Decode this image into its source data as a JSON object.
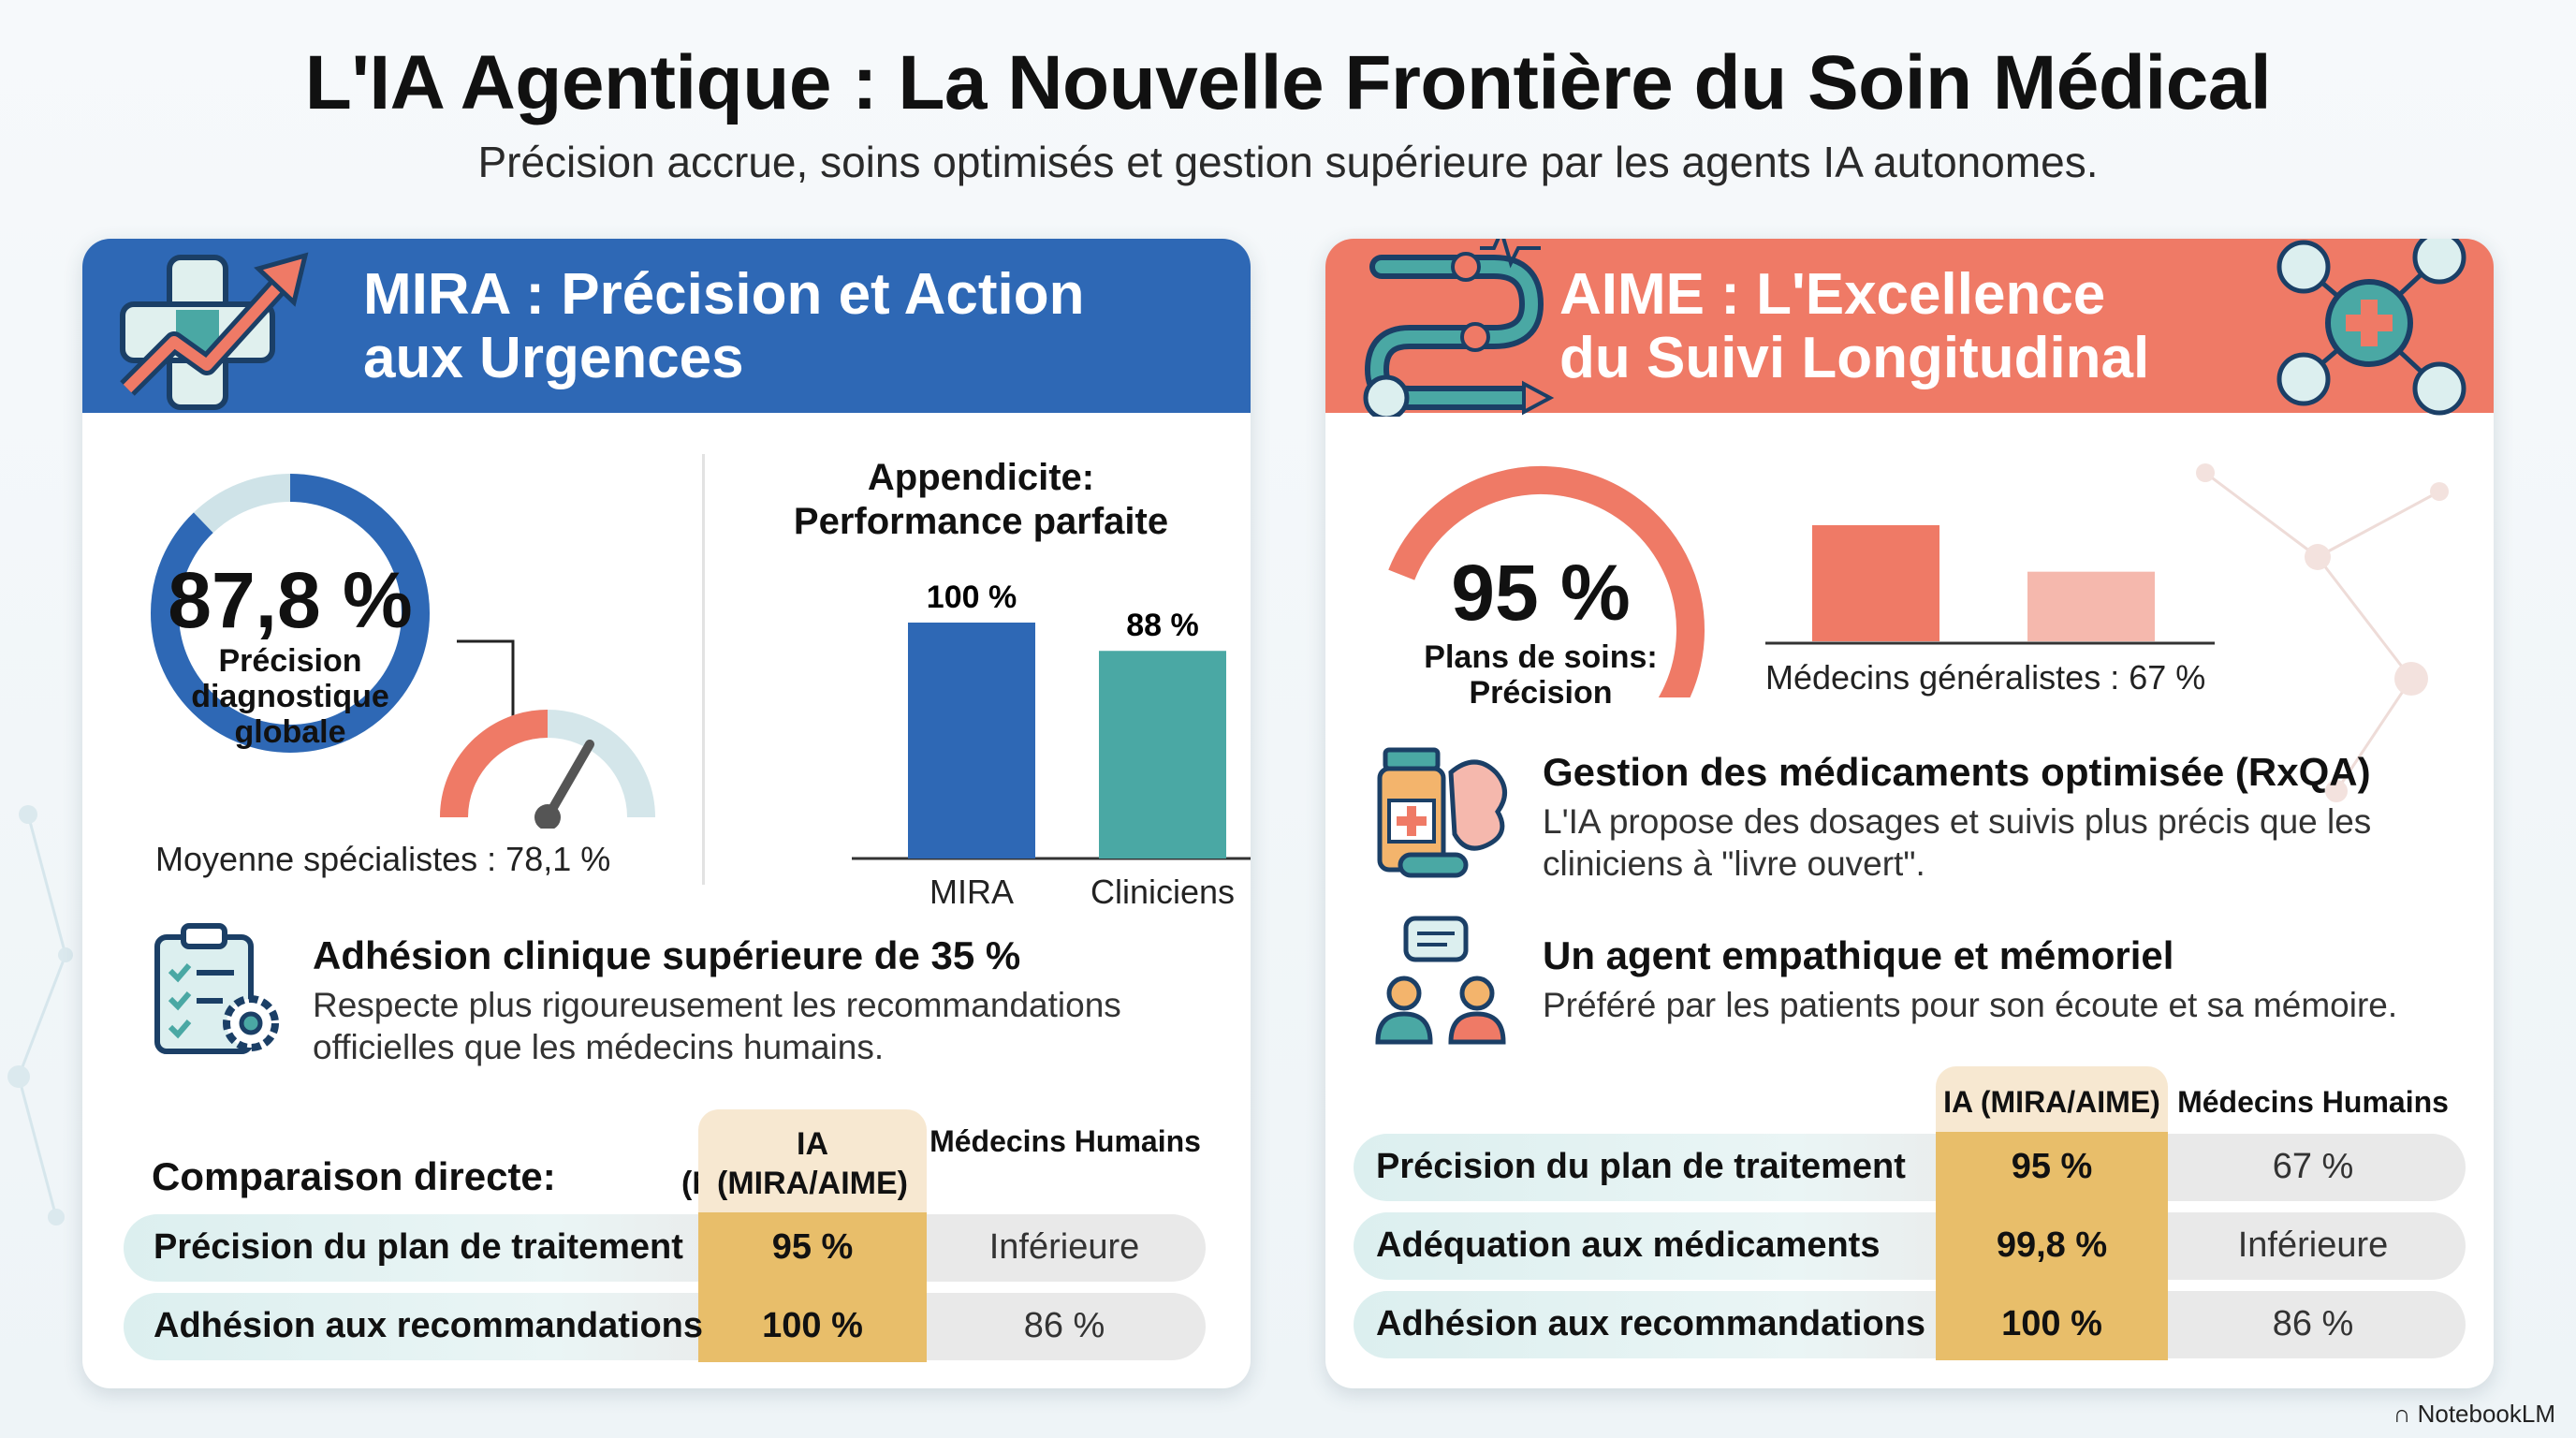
{
  "header": {
    "title": "L'IA Agentique : La Nouvelle Frontière du Soin Médical",
    "subtitle": "Précision accrue, soins optimisés et gestion supérieure par les agents IA autonomes."
  },
  "mira": {
    "title": "MIRA : Précision et Action\naux Urgences",
    "donut": {
      "value_label": "87,8 %",
      "value": 87.8,
      "caption": "Précision\ndiagnostique\nglobale"
    },
    "gauge_note": "Moyenne spécialistes : 78,1 %",
    "appendicite": {
      "title": "Appendicite:\nPerformance parfaite",
      "bars": [
        {
          "label": "MIRA",
          "value": 100,
          "value_label": "100 %",
          "color": "#2e68b5"
        },
        {
          "label": "Cliniciens",
          "value": 88,
          "value_label": "88 %",
          "color": "#4aa8a4"
        }
      ]
    },
    "feature": {
      "title": "Adhésion clinique supérieure de 35 %",
      "desc": "Respecte plus rigoureusement les recommandations\nofficielles que les médecins humains."
    },
    "table": {
      "heading": "Comparaison directe:",
      "col_ai": "IA\n(MIRA/AIME)",
      "col_doc": "Médecins Humains",
      "rows": [
        {
          "label": "Précision du plan de traitement",
          "ai": "95 %",
          "doc": "Inférieure"
        },
        {
          "label": "Adhésion aux recommandations",
          "ai": "100 %",
          "doc": "86 %"
        }
      ]
    }
  },
  "aime": {
    "title": "AIME : L'Excellence\ndu Suivi Longitudinal",
    "gauge": {
      "value_label": "95 %",
      "value": 95,
      "caption": "Plans de soins:\nPrécision"
    },
    "bars": [
      {
        "value": 95,
        "color": "#ef7a66"
      },
      {
        "value": 67,
        "color": "#f5b8ad"
      }
    ],
    "bars_note": "Médecins généralistes : 67 %",
    "features": [
      {
        "title": "Gestion des médicaments optimisée (RxQA)",
        "desc": "L'IA propose des dosages et suivis plus précis que les\ncliniciens à \"livre ouvert\"."
      },
      {
        "title": "Un agent empathique et mémoriel",
        "desc": "Préféré par les patients pour son écoute et sa mémoire."
      }
    ],
    "table": {
      "col_ai": "IA (MIRA/AIME)",
      "col_doc": "Médecins Humains",
      "rows": [
        {
          "label": "Précision du plan de traitement",
          "ai": "95 %",
          "doc": "67 %"
        },
        {
          "label": "Adéquation aux médicaments",
          "ai": "99,8 %",
          "doc": "Inférieure"
        },
        {
          "label": "Adhésion aux recommandations",
          "ai": "100 %",
          "doc": "86 %"
        }
      ]
    }
  },
  "footer": {
    "logo": "NotebookLM"
  },
  "colors": {
    "blue": "#2e68b5",
    "coral": "#ef7a66",
    "teal": "#4aa8a4",
    "gold": "#e8be6a"
  }
}
